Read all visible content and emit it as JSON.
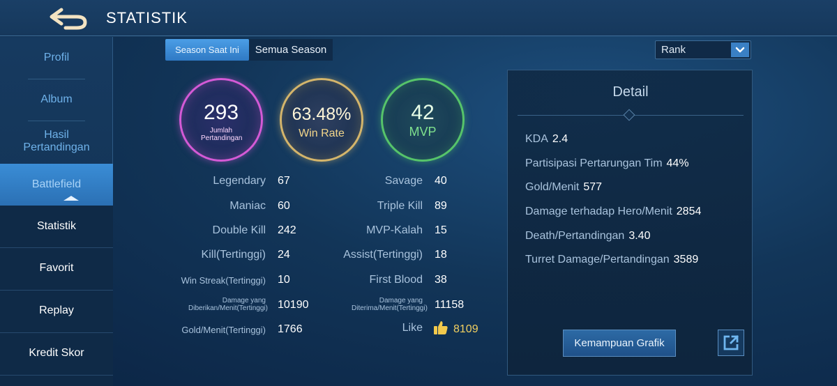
{
  "header": {
    "title": "STATISTIK",
    "back_icon": "back-arrow-icon"
  },
  "sidebar": {
    "items": [
      {
        "label": "Profil"
      },
      {
        "label": "Album"
      },
      {
        "label": "Hasil Pertandingan"
      },
      {
        "label": "Battlefield"
      }
    ],
    "sub_items": [
      {
        "label": "Statistik"
      },
      {
        "label": "Favorit"
      },
      {
        "label": "Replay"
      },
      {
        "label": "Kredit Skor"
      }
    ]
  },
  "tabs": {
    "current": "Season Saat Ini",
    "all": "Semua Season"
  },
  "mode_select": {
    "value": "Rank"
  },
  "summary": {
    "matches": {
      "value": "293",
      "label": "Jumlah Pertandingan"
    },
    "win_rate": {
      "value": "63.48%",
      "label": "Win Rate"
    },
    "mvp": {
      "value": "42",
      "label": "MVP"
    }
  },
  "stats_left": [
    {
      "label": "Legendary",
      "value": "67"
    },
    {
      "label": "Maniac",
      "value": "60"
    },
    {
      "label": "Double Kill",
      "value": "242"
    },
    {
      "label": "Kill(Tertinggi)",
      "value": "24"
    },
    {
      "label": "Win Streak(Tertinggi)",
      "value": "10"
    },
    {
      "label": "Damage yang Diberikan/Menit(Tertinggi)",
      "value": "10190"
    },
    {
      "label": "Gold/Menit(Tertinggi)",
      "value": "1766"
    }
  ],
  "stats_right": [
    {
      "label": "Savage",
      "value": "40"
    },
    {
      "label": "Triple Kill",
      "value": "89"
    },
    {
      "label": "MVP-Kalah",
      "value": "15"
    },
    {
      "label": "Assist(Tertinggi)",
      "value": "18"
    },
    {
      "label": "First Blood",
      "value": "38"
    },
    {
      "label": "Damage yang Diterima/Menit(Tertinggi)",
      "value": "11158"
    },
    {
      "label": "Like",
      "value": "8109"
    }
  ],
  "detail": {
    "title": "Detail",
    "rows": [
      {
        "label": "KDA",
        "value": "2.4"
      },
      {
        "label": "Partisipasi Pertarungan Tim",
        "value": "44%"
      },
      {
        "label": "Gold/Menit",
        "value": "577"
      },
      {
        "label": "Damage terhadap Hero/Menit",
        "value": "2854"
      },
      {
        "label": "Death/Pertandingan",
        "value": "3.40"
      },
      {
        "label": "Turret Damage/Pertandingan",
        "value": "3589"
      }
    ],
    "chart_button": "Kemampuan Grafik"
  },
  "colors": {
    "accent": "#3a8dd6",
    "matches_ring": "#d45ad6",
    "winrate_ring": "#d4b56b",
    "mvp_ring": "#56c46a",
    "like": "#f2d060"
  }
}
